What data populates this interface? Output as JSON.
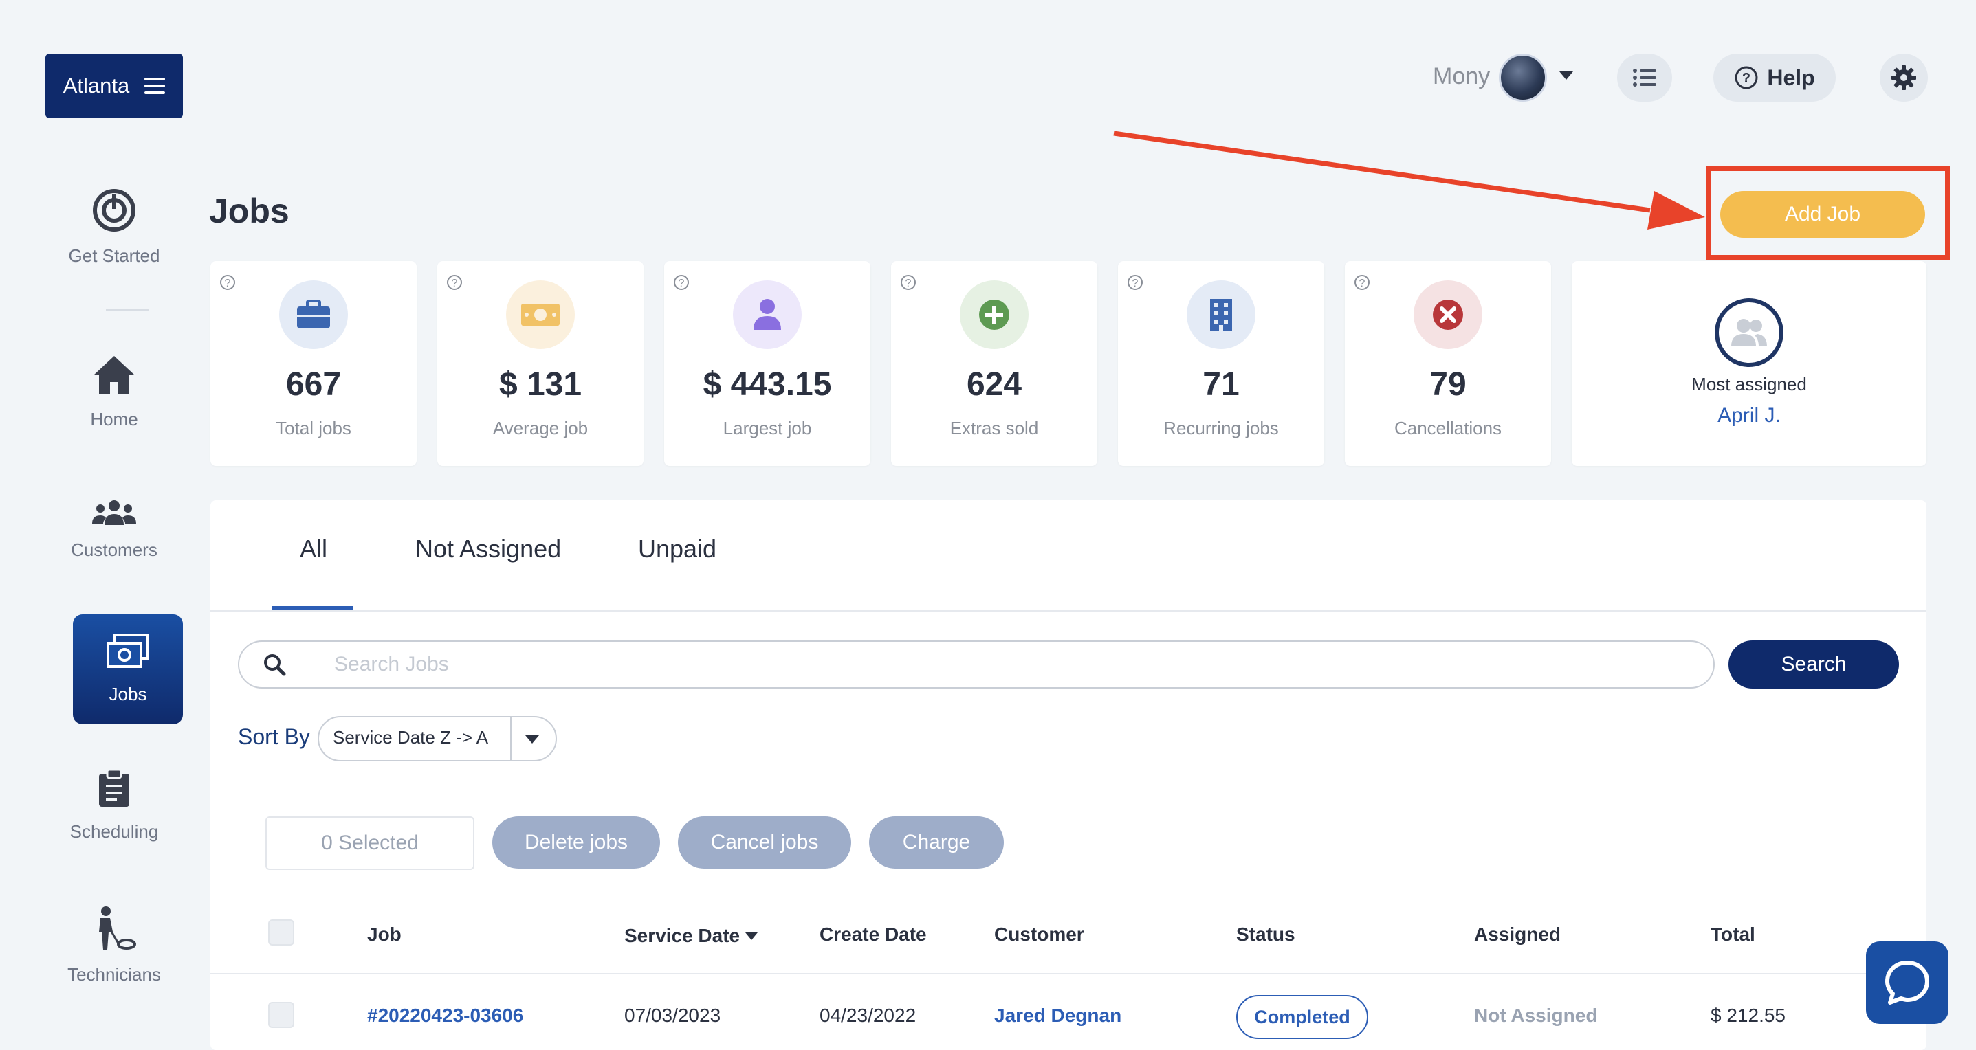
{
  "header": {
    "location_label": "Atlanta",
    "user_name": "Mony",
    "help_label": "Help"
  },
  "sidebar": {
    "items": [
      {
        "label": "Get Started"
      },
      {
        "label": "Home"
      },
      {
        "label": "Customers"
      },
      {
        "label": "Jobs"
      },
      {
        "label": "Scheduling"
      },
      {
        "label": "Technicians"
      }
    ]
  },
  "page": {
    "title": "Jobs",
    "add_job_label": "Add Job"
  },
  "stats": [
    {
      "value": "667",
      "label": "Total jobs",
      "icon": "briefcase-icon",
      "color": "#3b66b0"
    },
    {
      "value": "$ 131",
      "label": "Average job",
      "icon": "money-icon",
      "color": "#f1c266"
    },
    {
      "value": "$ 443.15",
      "label": "Largest job",
      "icon": "person-icon",
      "color": "#8a6fe0"
    },
    {
      "value": "624",
      "label": "Extras sold",
      "icon": "plus-circle-icon",
      "color": "#5d9a52"
    },
    {
      "value": "71",
      "label": "Recurring jobs",
      "icon": "building-icon",
      "color": "#3b66b0"
    },
    {
      "value": "79",
      "label": "Cancellations",
      "icon": "x-circle-icon",
      "color": "#b8373a"
    }
  ],
  "most_assigned": {
    "label": "Most assigned",
    "name": "April J."
  },
  "tabs": [
    {
      "label": "All",
      "active": true
    },
    {
      "label": "Not Assigned",
      "active": false
    },
    {
      "label": "Unpaid",
      "active": false
    }
  ],
  "search": {
    "placeholder": "Search Jobs",
    "value": "",
    "button_label": "Search"
  },
  "sort": {
    "label": "Sort By",
    "value": "Service Date Z -> A"
  },
  "actions": {
    "selected_label": "0 Selected",
    "delete_label": "Delete jobs",
    "cancel_label": "Cancel jobs",
    "charge_label": "Charge"
  },
  "table": {
    "columns": [
      "Job",
      "Service Date",
      "Create Date",
      "Customer",
      "Status",
      "Assigned",
      "Total"
    ],
    "rows": [
      {
        "job": "#20220423-03606",
        "service_date": "07/03/2023",
        "create_date": "04/23/2022",
        "customer": "Jared Degnan",
        "status": "Completed",
        "assigned": "Not Assigned",
        "total": "$ 212.55"
      }
    ]
  }
}
